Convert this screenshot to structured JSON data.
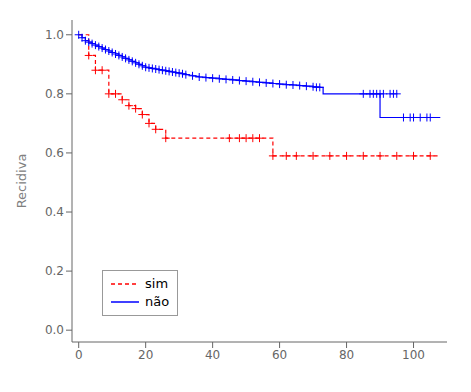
{
  "chart_data": {
    "type": "step",
    "title": "",
    "ylabel": "Recidiva",
    "xlim": [
      -2,
      110
    ],
    "ylim": [
      -0.04,
      1.05
    ],
    "xticks": [
      0,
      20,
      40,
      60,
      80,
      100
    ],
    "yticks": [
      {
        "value": 0.0,
        "label": "0.0"
      },
      0.2,
      0.4,
      0.6,
      0.8,
      {
        "value": 1.0,
        "label": "1.0"
      }
    ],
    "grid": false,
    "legend": "lower left",
    "series": [
      {
        "name": "não",
        "color": "#0000FF",
        "line_style": "solid",
        "marker": "plus",
        "x": [
          0,
          1,
          2,
          3,
          4,
          5,
          6,
          7,
          8,
          9,
          10,
          11,
          12,
          13,
          14,
          15,
          16,
          17,
          18,
          19,
          20,
          21,
          22,
          23,
          24,
          25,
          26,
          27,
          28,
          29,
          30,
          31,
          32,
          33,
          34,
          35,
          36,
          38,
          40,
          42,
          44,
          46,
          48,
          50,
          52,
          54,
          56,
          58,
          60,
          62,
          64,
          66,
          68,
          70,
          72,
          73,
          85,
          90,
          95,
          100,
          105,
          108
        ],
        "values": [
          1.0,
          0.99,
          0.98,
          0.975,
          0.97,
          0.965,
          0.96,
          0.955,
          0.95,
          0.945,
          0.94,
          0.935,
          0.93,
          0.925,
          0.92,
          0.915,
          0.91,
          0.905,
          0.9,
          0.895,
          0.89,
          0.888,
          0.886,
          0.884,
          0.882,
          0.88,
          0.878,
          0.876,
          0.874,
          0.872,
          0.87,
          0.868,
          0.865,
          0.863,
          0.861,
          0.859,
          0.857,
          0.855,
          0.853,
          0.851,
          0.849,
          0.847,
          0.845,
          0.843,
          0.841,
          0.839,
          0.837,
          0.835,
          0.833,
          0.831,
          0.83,
          0.828,
          0.826,
          0.824,
          0.822,
          0.8,
          0.8,
          0.72,
          0.72,
          0.72,
          0.72,
          0.72
        ],
        "censors_x": [
          0,
          1,
          2,
          3,
          4,
          5,
          6,
          7,
          8,
          9,
          10,
          11,
          12,
          13,
          14,
          15,
          16,
          17,
          18,
          19,
          20,
          21,
          22,
          23,
          24,
          25,
          26,
          27,
          28,
          29,
          30,
          31,
          32,
          34,
          36,
          38,
          40,
          42,
          44,
          46,
          48,
          50,
          52,
          54,
          56,
          58,
          60,
          62,
          64,
          66,
          68,
          70,
          71,
          72,
          85,
          87,
          88,
          89,
          90,
          91,
          93,
          94,
          95,
          97,
          99,
          100,
          102,
          104,
          105
        ],
        "censors_y": [
          1.0,
          0.99,
          0.98,
          0.975,
          0.97,
          0.965,
          0.96,
          0.955,
          0.95,
          0.945,
          0.94,
          0.935,
          0.93,
          0.925,
          0.92,
          0.915,
          0.91,
          0.905,
          0.9,
          0.895,
          0.89,
          0.888,
          0.886,
          0.884,
          0.882,
          0.88,
          0.878,
          0.876,
          0.874,
          0.872,
          0.87,
          0.868,
          0.865,
          0.861,
          0.857,
          0.855,
          0.853,
          0.851,
          0.849,
          0.847,
          0.845,
          0.843,
          0.841,
          0.839,
          0.837,
          0.835,
          0.833,
          0.831,
          0.83,
          0.828,
          0.826,
          0.824,
          0.822,
          0.822,
          0.8,
          0.8,
          0.8,
          0.8,
          0.8,
          0.8,
          0.8,
          0.8,
          0.8,
          0.72,
          0.72,
          0.72,
          0.72,
          0.72,
          0.72
        ]
      },
      {
        "name": "sim",
        "color": "#FF0000",
        "line_style": "dashed",
        "marker": "plus",
        "x": [
          0,
          3,
          5,
          7,
          9,
          11,
          13,
          15,
          17,
          19,
          21,
          23,
          26,
          27,
          45,
          48,
          50,
          52,
          54,
          58,
          62,
          65,
          70,
          75,
          80,
          85,
          90,
          95,
          100,
          105,
          108
        ],
        "values": [
          1.0,
          0.93,
          0.88,
          0.88,
          0.8,
          0.8,
          0.78,
          0.76,
          0.75,
          0.73,
          0.7,
          0.68,
          0.65,
          0.65,
          0.65,
          0.65,
          0.65,
          0.65,
          0.65,
          0.59,
          0.59,
          0.59,
          0.59,
          0.59,
          0.59,
          0.59,
          0.59,
          0.59,
          0.59,
          0.59,
          0.59
        ],
        "censors_x": [
          3,
          5,
          7,
          9,
          11,
          13,
          15,
          17,
          19,
          21,
          23,
          26,
          45,
          48,
          50,
          52,
          54,
          58,
          62,
          65,
          70,
          75,
          80,
          85,
          90,
          95,
          100,
          105
        ],
        "censors_y": [
          0.93,
          0.88,
          0.88,
          0.8,
          0.8,
          0.78,
          0.76,
          0.75,
          0.73,
          0.7,
          0.68,
          0.65,
          0.65,
          0.65,
          0.65,
          0.65,
          0.65,
          0.59,
          0.59,
          0.59,
          0.59,
          0.59,
          0.59,
          0.59,
          0.59,
          0.59,
          0.59,
          0.59
        ]
      }
    ]
  }
}
